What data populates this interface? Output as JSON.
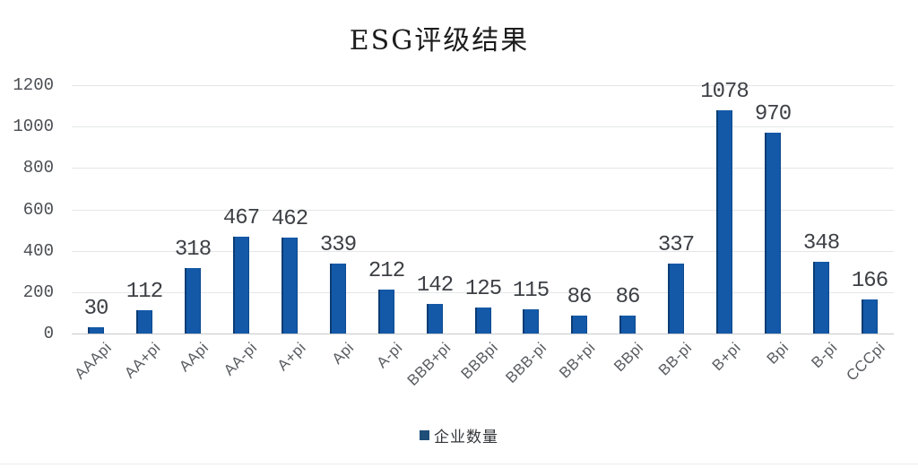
{
  "title": "ESG评级结果",
  "legend": {
    "label": "企业数量",
    "swatch_color": "#1f4e79"
  },
  "chart_data": {
    "type": "bar",
    "title": "ESG评级结果",
    "categories": [
      "AAApi",
      "AA+pi",
      "AApi",
      "AA-pi",
      "A+pi",
      "Api",
      "A-pi",
      "BBB+pi",
      "BBBpi",
      "BBB-pi",
      "BB+pi",
      "BBpi",
      "BB-pi",
      "B+pi",
      "Bpi",
      "B-pi",
      "CCCpi"
    ],
    "values": [
      30,
      112,
      318,
      467,
      462,
      339,
      212,
      142,
      125,
      115,
      86,
      86,
      337,
      1078,
      970,
      348,
      166
    ],
    "series_name": "企业数量",
    "xlabel": "",
    "ylabel": "",
    "ylim": [
      0,
      1200
    ],
    "yticks": [
      0,
      200,
      400,
      600,
      800,
      1000,
      1200
    ],
    "grid": true,
    "data_labels": true,
    "legend_position": "bottom",
    "bar_color": "#1459a8",
    "bar_edge_color": "#0b3c74",
    "grid_color": "#e4e6e8",
    "label_color": "#3d4045"
  }
}
